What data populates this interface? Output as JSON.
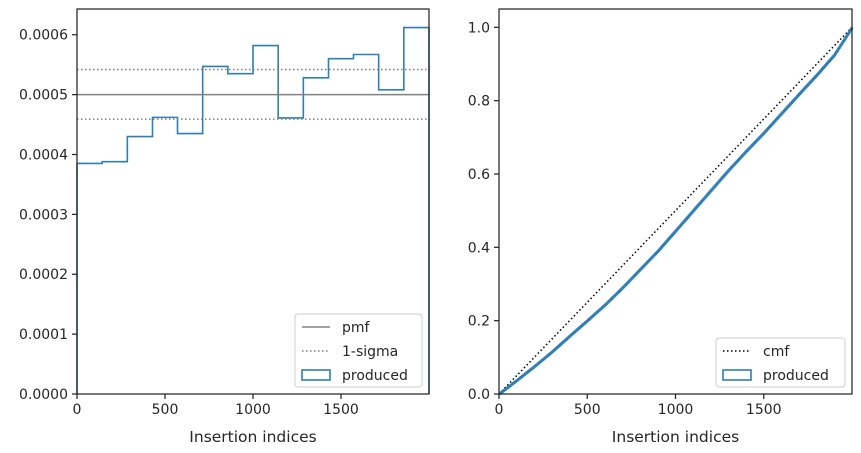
{
  "chart_data": [
    {
      "type": "step",
      "xlabel": "Insertion indices",
      "ylabel": "",
      "xlim": [
        0,
        2000
      ],
      "ylim": [
        0,
        0.000643
      ],
      "x_ticks": [
        0,
        500,
        1000,
        1500
      ],
      "x_tick_labels": [
        "0",
        "500",
        "1000",
        "1500"
      ],
      "y_ticks": [
        0,
        0.0001,
        0.0002,
        0.0003,
        0.0004,
        0.0005,
        0.0006
      ],
      "y_tick_labels": [
        "0.0000",
        "0.0001",
        "0.0002",
        "0.0003",
        "0.0004",
        "0.0005",
        "0.0006"
      ],
      "bin_edges": [
        0,
        143,
        286,
        429,
        571,
        714,
        857,
        1000,
        1143,
        1286,
        1429,
        1571,
        1714,
        1857,
        2000
      ],
      "series": [
        {
          "name": "produced",
          "style": "step-outline",
          "color": "#2f7fb5",
          "values": [
            0.000385,
            0.000388,
            0.00043,
            0.000462,
            0.000435,
            0.000547,
            0.000535,
            0.000582,
            0.000461,
            0.000528,
            0.00056,
            0.000567,
            0.000508,
            0.000612
          ]
        },
        {
          "name": "pmf",
          "style": "solid-hline",
          "color": "#808080",
          "y": 0.0005
        },
        {
          "name": "1-sigma",
          "style": "dotted-hline",
          "color": "#808080",
          "y": [
            0.000459,
            0.000542
          ]
        }
      ],
      "legend": {
        "location": "lower-right",
        "entries": [
          {
            "label": "pmf",
            "marker": "solid-line",
            "color": "#808080"
          },
          {
            "label": "1-sigma",
            "marker": "dotted-line",
            "color": "#808080"
          },
          {
            "label": "produced",
            "marker": "box",
            "color": "#2f7fb5"
          }
        ]
      }
    },
    {
      "type": "step",
      "xlabel": "Insertion indices",
      "ylabel": "",
      "xlim": [
        0,
        2000
      ],
      "ylim": [
        0,
        1.05
      ],
      "x_ticks": [
        0,
        500,
        1000,
        1500
      ],
      "x_tick_labels": [
        "0",
        "500",
        "1000",
        "1500"
      ],
      "y_ticks": [
        0,
        0.2,
        0.4,
        0.6,
        0.8,
        1.0
      ],
      "y_tick_labels": [
        "0.0",
        "0.2",
        "0.4",
        "0.6",
        "0.8",
        "1.0"
      ],
      "series": [
        {
          "name": "cmf",
          "style": "dotted-line",
          "color": "#000000",
          "x": [
            0,
            2000
          ],
          "y": [
            0,
            1.0
          ]
        },
        {
          "name": "produced",
          "style": "step-outline",
          "color": "#2f7fb5",
          "x": [
            0,
            100,
            200,
            300,
            400,
            500,
            600,
            700,
            800,
            900,
            1000,
            1100,
            1200,
            1300,
            1400,
            1500,
            1600,
            1700,
            1800,
            1900,
            2000
          ],
          "y": [
            0,
            0.037,
            0.075,
            0.115,
            0.158,
            0.2,
            0.243,
            0.29,
            0.34,
            0.39,
            0.445,
            0.5,
            0.555,
            0.61,
            0.662,
            0.712,
            0.765,
            0.818,
            0.87,
            0.925,
            1.0
          ]
        }
      ],
      "legend": {
        "location": "lower-right",
        "entries": [
          {
            "label": "cmf",
            "marker": "dotted-line",
            "color": "#000000"
          },
          {
            "label": "produced",
            "marker": "box",
            "color": "#2f7fb5"
          }
        ]
      }
    }
  ]
}
